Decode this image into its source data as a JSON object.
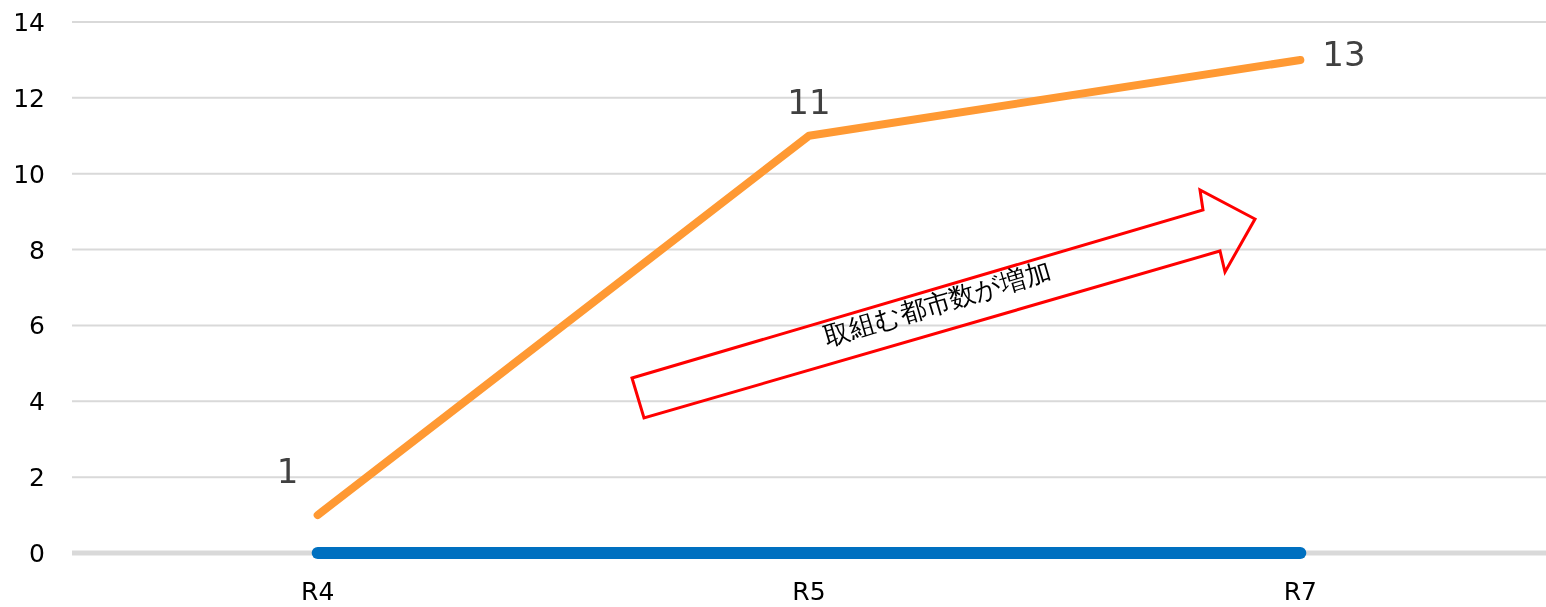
{
  "chart_data": {
    "type": "line",
    "categories": [
      "R4",
      "R5",
      "R7"
    ],
    "series": [
      {
        "color": "#0070c0",
        "values": [
          0,
          0,
          0
        ]
      },
      {
        "color": "#ff9933",
        "values": [
          1,
          11,
          13
        ],
        "value_labels": [
          "1",
          "11",
          "13"
        ]
      }
    ],
    "ylim": [
      0,
      14
    ],
    "yticks": [
      0,
      2,
      4,
      6,
      8,
      10,
      12,
      14
    ],
    "grid": "y",
    "annotations": [
      "取組む都市数が増加"
    ]
  }
}
